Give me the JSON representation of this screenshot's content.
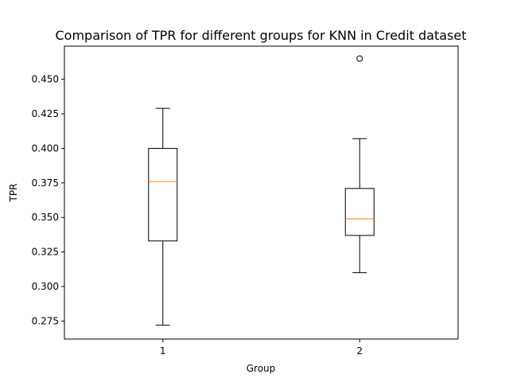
{
  "chart_data": {
    "type": "box",
    "title": "Comparison of TPR for different groups for KNN in Credit dataset",
    "xlabel": "Group",
    "ylabel": "TPR",
    "categories": [
      "1",
      "2"
    ],
    "ylim": [
      0.262,
      0.474
    ],
    "yticks": [
      "0.275",
      "0.300",
      "0.325",
      "0.350",
      "0.375",
      "0.400",
      "0.425",
      "0.450"
    ],
    "grid": false,
    "boxes": [
      {
        "group": "1",
        "whisker_low": 0.272,
        "q1": 0.333,
        "median": 0.376,
        "q3": 0.4,
        "whisker_high": 0.429,
        "outliers": []
      },
      {
        "group": "2",
        "whisker_low": 0.31,
        "q1": 0.337,
        "median": 0.349,
        "q3": 0.371,
        "whisker_high": 0.407,
        "outliers": [
          0.465
        ]
      }
    ],
    "colors": {
      "box": "#000000",
      "median": "#ff7f0e",
      "outlier": "#000000"
    }
  }
}
